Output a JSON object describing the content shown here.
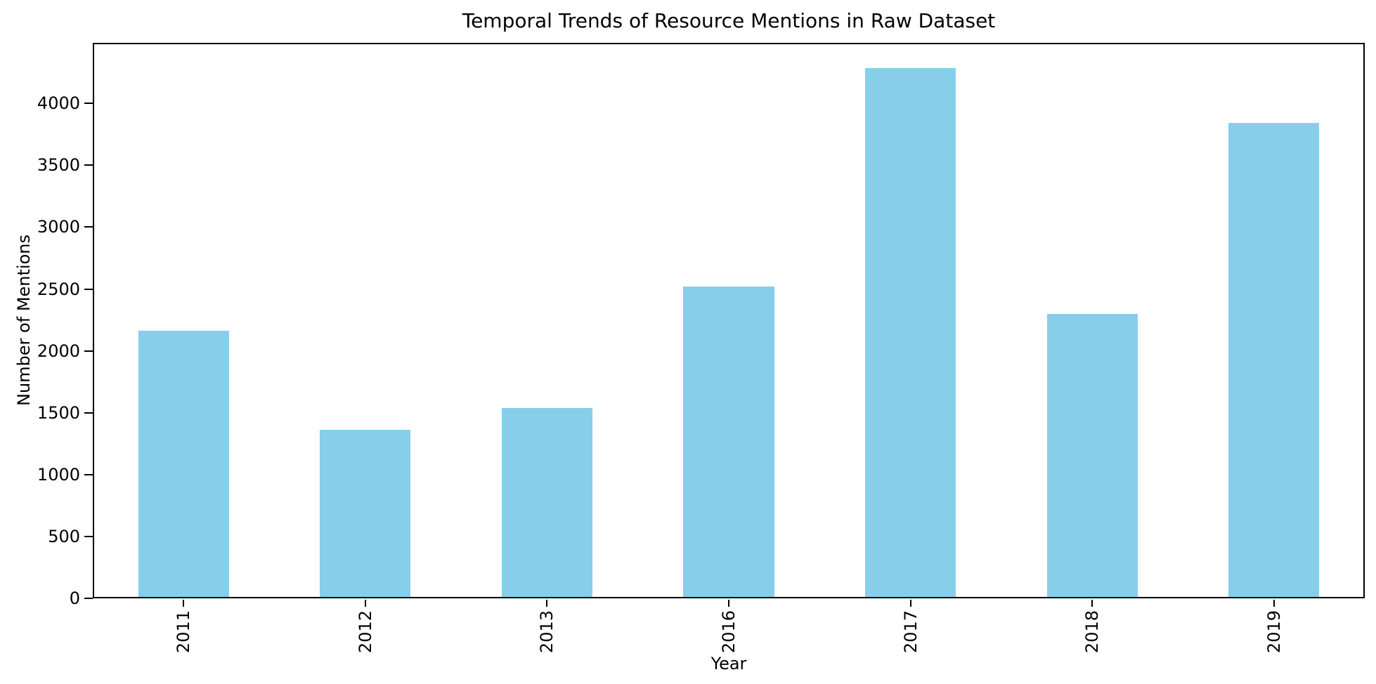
{
  "chart_data": {
    "type": "bar",
    "title": "Temporal Trends of Resource Mentions in Raw Dataset",
    "xlabel": "Year",
    "ylabel": "Number of Mentions",
    "categories": [
      "2011",
      "2012",
      "2013",
      "2016",
      "2017",
      "2018",
      "2019"
    ],
    "values": [
      2160,
      1360,
      1540,
      2520,
      4285,
      2300,
      3845
    ],
    "yticks": [
      0,
      500,
      1000,
      1500,
      2000,
      2500,
      3000,
      3500,
      4000
    ],
    "ylim": [
      0,
      4490
    ],
    "x_tick_rotation": 90,
    "bar_color": "#87CEEB",
    "bar_width_fraction": 0.5,
    "grid": false,
    "legend": false,
    "background_color": "#FFFFFF",
    "spine_color": "#000000",
    "text_color": "#000000"
  }
}
